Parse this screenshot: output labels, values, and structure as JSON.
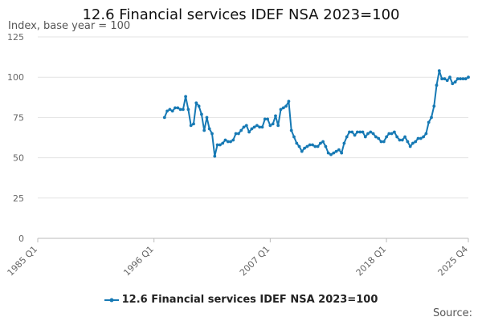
{
  "chart_data": {
    "type": "line",
    "title": "12.6 Financial services IDEF NSA 2023=100",
    "subtitle": "Index, base year = 100",
    "ylim": [
      0,
      125
    ],
    "y_ticks": [
      0,
      25,
      50,
      75,
      100,
      125
    ],
    "x_ticks": [
      "1985 Q1",
      "1996 Q1",
      "2007 Q1",
      "2018 Q1",
      "2025 Q4"
    ],
    "x_tick_positions": [
      1985.0,
      1996.0,
      2007.0,
      2018.0,
      2025.75
    ],
    "grid": true,
    "legend_position": "bottom",
    "series": [
      {
        "name": "12.6 Financial services IDEF NSA 2023=100",
        "color": "#1679b4",
        "x": [
          1997.0,
          1997.25,
          1997.5,
          1997.75,
          1998.0,
          1998.25,
          1998.5,
          1998.75,
          1999.0,
          1999.25,
          1999.5,
          1999.75,
          2000.0,
          2000.25,
          2000.5,
          2000.75,
          2001.0,
          2001.25,
          2001.5,
          2001.75,
          2002.0,
          2002.25,
          2002.5,
          2002.75,
          2003.0,
          2003.25,
          2003.5,
          2003.75,
          2004.0,
          2004.25,
          2004.5,
          2004.75,
          2005.0,
          2005.25,
          2005.5,
          2005.75,
          2006.0,
          2006.25,
          2006.5,
          2006.75,
          2007.0,
          2007.25,
          2007.5,
          2007.75,
          2008.0,
          2008.25,
          2008.5,
          2008.75,
          2009.0,
          2009.25,
          2009.5,
          2009.75,
          2010.0,
          2010.25,
          2010.5,
          2010.75,
          2011.0,
          2011.25,
          2011.5,
          2011.75,
          2012.0,
          2012.25,
          2012.5,
          2012.75,
          2013.0,
          2013.25,
          2013.5,
          2013.75,
          2014.0,
          2014.25,
          2014.5,
          2014.75,
          2015.0,
          2015.25,
          2015.5,
          2015.75,
          2016.0,
          2016.25,
          2016.5,
          2016.75,
          2017.0,
          2017.25,
          2017.5,
          2017.75,
          2018.0,
          2018.25,
          2018.5,
          2018.75,
          2019.0,
          2019.25,
          2019.5,
          2019.75,
          2020.0,
          2020.25,
          2020.5,
          2020.75,
          2021.0,
          2021.25,
          2021.5,
          2021.75,
          2022.0,
          2022.25,
          2022.5,
          2022.75,
          2023.0,
          2023.25,
          2023.5,
          2023.75,
          2024.0,
          2024.25,
          2024.5,
          2024.75,
          2025.0,
          2025.25,
          2025.5,
          2025.75
        ],
        "values": [
          75,
          79,
          80,
          79,
          81,
          81,
          80,
          80,
          88,
          80,
          70,
          71,
          84,
          82,
          77,
          67,
          75,
          68,
          65,
          51,
          58,
          58,
          59,
          61,
          60,
          60,
          61,
          65,
          65,
          67,
          69,
          70,
          66,
          68,
          69,
          70,
          69,
          69,
          74,
          74,
          70,
          71,
          76,
          70,
          80,
          81,
          82,
          85,
          67,
          63,
          59,
          57,
          54,
          56,
          57,
          58,
          58,
          57,
          57,
          59,
          60,
          57,
          53,
          52,
          53,
          54,
          55,
          53,
          59,
          63,
          66,
          66,
          64,
          66,
          66,
          66,
          63,
          65,
          66,
          65,
          63,
          62,
          60,
          60,
          63,
          65,
          65,
          66,
          63,
          61,
          61,
          63,
          60,
          57,
          59,
          60,
          62,
          62,
          63,
          65,
          72,
          75,
          82,
          95,
          104,
          99,
          99,
          98,
          100,
          96,
          97,
          99,
          99,
          99,
          99,
          100
        ]
      }
    ],
    "source_label": "Source:"
  }
}
